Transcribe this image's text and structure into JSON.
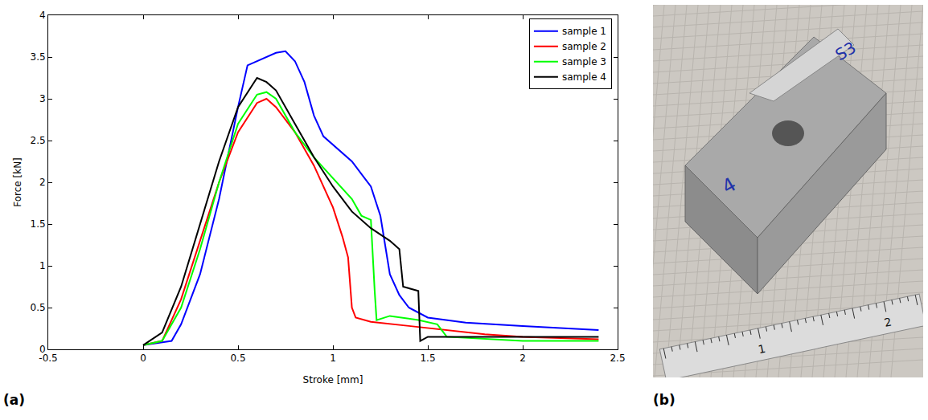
{
  "chart_data": {
    "type": "line",
    "x_label": "Stroke [mm]",
    "y_label": "Force [kN]",
    "xlim": [
      -0.5,
      2.5
    ],
    "xticks": [
      -0.5,
      0,
      0.5,
      1,
      1.5,
      2,
      2.5
    ],
    "ylim": [
      0,
      4
    ],
    "yticks": [
      0,
      0.5,
      1,
      1.5,
      2,
      2.5,
      3,
      3.5,
      4
    ],
    "grid": false,
    "legend": "top right",
    "series": [
      {
        "name": "sample 1",
        "color": "#0000ff",
        "x": [
          0,
          0.15,
          0.2,
          0.3,
          0.4,
          0.5,
          0.55,
          0.6,
          0.65,
          0.7,
          0.75,
          0.8,
          0.85,
          0.9,
          0.95,
          1.0,
          1.05,
          1.1,
          1.15,
          1.2,
          1.25,
          1.3,
          1.35,
          1.4,
          1.5,
          1.7,
          2.0,
          2.4
        ],
        "values": [
          0.05,
          0.1,
          0.3,
          0.9,
          1.8,
          2.9,
          3.4,
          3.45,
          3.5,
          3.55,
          3.57,
          3.45,
          3.2,
          2.8,
          2.55,
          2.45,
          2.35,
          2.25,
          2.1,
          1.95,
          1.6,
          0.9,
          0.65,
          0.5,
          0.38,
          0.32,
          0.28,
          0.23
        ]
      },
      {
        "name": "sample 2",
        "color": "#ff0000",
        "x": [
          0,
          0.1,
          0.2,
          0.3,
          0.4,
          0.5,
          0.6,
          0.65,
          0.7,
          0.8,
          0.9,
          1.0,
          1.05,
          1.08,
          1.1,
          1.12,
          1.2,
          1.4,
          1.6,
          1.8,
          2.0,
          2.4
        ],
        "values": [
          0.05,
          0.1,
          0.6,
          1.3,
          2.0,
          2.6,
          2.95,
          3.0,
          2.9,
          2.6,
          2.2,
          1.7,
          1.35,
          1.1,
          0.5,
          0.38,
          0.33,
          0.28,
          0.23,
          0.18,
          0.15,
          0.12
        ]
      },
      {
        "name": "sample 3",
        "color": "#00ff00",
        "x": [
          0,
          0.1,
          0.2,
          0.3,
          0.4,
          0.5,
          0.6,
          0.65,
          0.7,
          0.8,
          0.9,
          1.0,
          1.1,
          1.15,
          1.2,
          1.22,
          1.23,
          1.3,
          1.45,
          1.55,
          1.6,
          2.0,
          2.4
        ],
        "values": [
          0.05,
          0.1,
          0.5,
          1.2,
          2.0,
          2.7,
          3.05,
          3.08,
          3.0,
          2.6,
          2.3,
          2.05,
          1.8,
          1.6,
          1.55,
          0.7,
          0.35,
          0.4,
          0.35,
          0.3,
          0.15,
          0.1,
          0.1
        ]
      },
      {
        "name": "sample 4",
        "color": "#000000",
        "x": [
          0,
          0.1,
          0.2,
          0.3,
          0.4,
          0.5,
          0.6,
          0.65,
          0.7,
          0.8,
          0.9,
          1.0,
          1.1,
          1.2,
          1.3,
          1.35,
          1.37,
          1.45,
          1.46,
          1.5,
          1.7,
          2.0,
          2.4
        ],
        "values": [
          0.05,
          0.2,
          0.75,
          1.5,
          2.25,
          2.9,
          3.25,
          3.2,
          3.1,
          2.7,
          2.3,
          1.95,
          1.65,
          1.45,
          1.3,
          1.2,
          0.75,
          0.7,
          0.1,
          0.15,
          0.15,
          0.15,
          0.15
        ]
      }
    ]
  },
  "panels": {
    "a": "(a)",
    "b": "(b)"
  },
  "photo": {
    "labels": [
      "S3",
      "4"
    ],
    "ruler": [
      "1",
      "2"
    ]
  }
}
